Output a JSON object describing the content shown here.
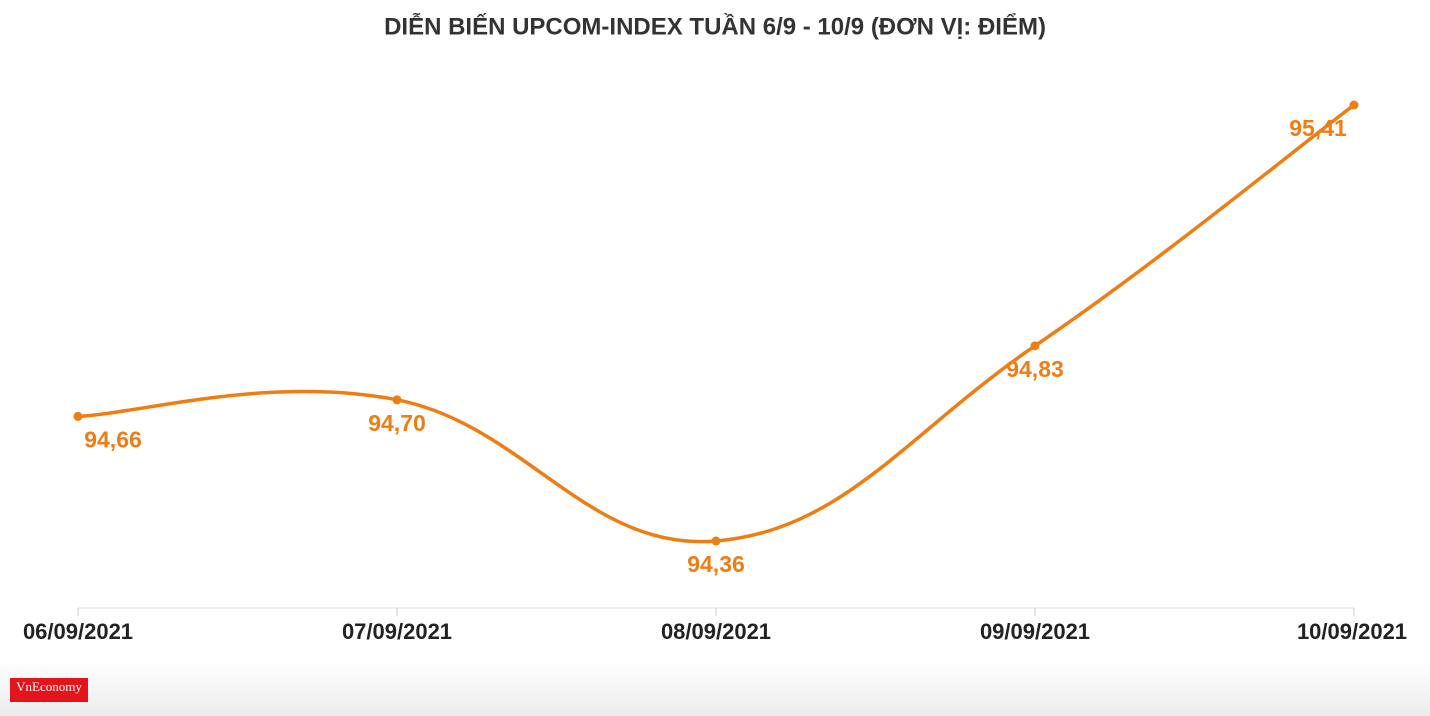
{
  "chart_data": {
    "type": "line",
    "title": "DIỄN BIẾN UPCOM-INDEX TUẦN 6/9 - 10/9 (ĐƠN VỊ: ĐIỂM)",
    "categories": [
      "06/09/2021",
      "07/09/2021",
      "08/09/2021",
      "09/09/2021",
      "10/09/2021"
    ],
    "values": [
      94.66,
      94.7,
      94.36,
      94.83,
      95.41
    ],
    "value_labels": [
      "94,66",
      "94,70",
      "94,36",
      "94,83",
      "95,41"
    ],
    "color": "#ee7d14",
    "source_logo": "VnEconomy"
  }
}
